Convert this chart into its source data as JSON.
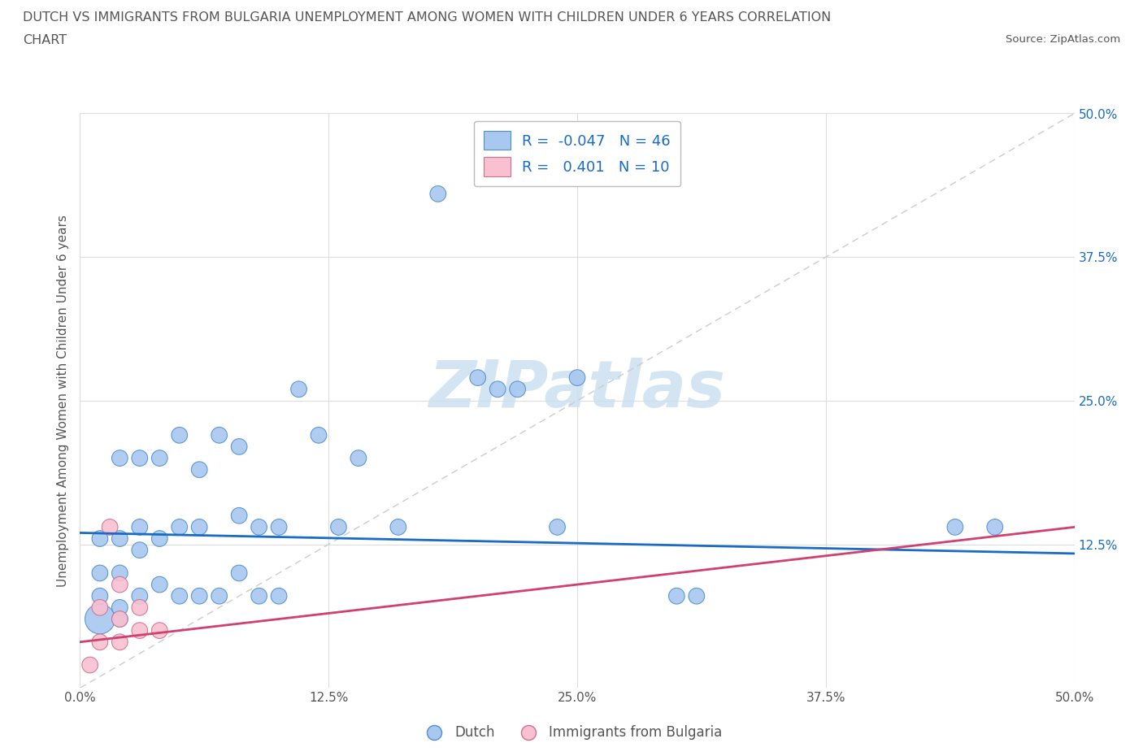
{
  "title_line1": "DUTCH VS IMMIGRANTS FROM BULGARIA UNEMPLOYMENT AMONG WOMEN WITH CHILDREN UNDER 6 YEARS CORRELATION",
  "title_line2": "CHART",
  "source": "Source: ZipAtlas.com",
  "ylabel": "Unemployment Among Women with Children Under 6 years",
  "xlim": [
    0.0,
    0.5
  ],
  "ylim": [
    0.0,
    0.5
  ],
  "xtick_vals": [
    0.0,
    0.125,
    0.25,
    0.375,
    0.5
  ],
  "xtick_labels": [
    "0.0%",
    "12.5%",
    "25.0%",
    "37.5%",
    "50.0%"
  ],
  "ytick_vals": [
    0.125,
    0.25,
    0.375,
    0.5
  ],
  "ytick_labels": [
    "12.5%",
    "25.0%",
    "37.5%",
    "50.0%"
  ],
  "dutch_R": -0.047,
  "dutch_N": 46,
  "bulgaria_R": 0.401,
  "bulgaria_N": 10,
  "dutch_color": "#a8c8f0",
  "dutch_edge_color": "#5090d0",
  "dutch_line_color": "#1a6bc4",
  "bulgaria_color": "#f8c0d0",
  "bulgaria_edge_color": "#d07090",
  "bulgaria_line_color": "#d04070",
  "watermark_color": "#cce0f0",
  "grid_color": "#dddddd",
  "bg_color": "#ffffff",
  "title_color": "#555555",
  "axis_label_color": "#555555",
  "tick_color_right": "#1a6bc4",
  "tick_color_bottom": "#555555",
  "dutch_x": [
    0.01,
    0.01,
    0.01,
    0.01,
    0.02,
    0.02,
    0.02,
    0.02,
    0.02,
    0.03,
    0.03,
    0.03,
    0.03,
    0.04,
    0.04,
    0.04,
    0.05,
    0.05,
    0.05,
    0.06,
    0.06,
    0.06,
    0.07,
    0.07,
    0.08,
    0.08,
    0.08,
    0.09,
    0.09,
    0.1,
    0.1,
    0.11,
    0.12,
    0.13,
    0.14,
    0.16,
    0.18,
    0.2,
    0.21,
    0.22,
    0.24,
    0.25,
    0.3,
    0.31,
    0.44,
    0.46
  ],
  "dutch_y": [
    0.06,
    0.08,
    0.1,
    0.13,
    0.06,
    0.07,
    0.1,
    0.13,
    0.2,
    0.08,
    0.12,
    0.14,
    0.2,
    0.09,
    0.13,
    0.2,
    0.08,
    0.14,
    0.22,
    0.08,
    0.14,
    0.19,
    0.08,
    0.22,
    0.1,
    0.15,
    0.21,
    0.08,
    0.14,
    0.08,
    0.14,
    0.26,
    0.22,
    0.14,
    0.2,
    0.14,
    0.43,
    0.27,
    0.26,
    0.26,
    0.14,
    0.27,
    0.08,
    0.08,
    0.14,
    0.14
  ],
  "dutch_sizes": [
    700,
    200,
    200,
    200,
    200,
    200,
    200,
    200,
    200,
    200,
    200,
    200,
    200,
    200,
    200,
    200,
    200,
    200,
    200,
    200,
    200,
    200,
    200,
    200,
    200,
    200,
    200,
    200,
    200,
    200,
    200,
    200,
    200,
    200,
    200,
    200,
    200,
    200,
    200,
    200,
    200,
    200,
    200,
    200,
    200,
    200
  ],
  "bulgaria_x": [
    0.005,
    0.01,
    0.01,
    0.015,
    0.02,
    0.02,
    0.02,
    0.03,
    0.03,
    0.04
  ],
  "bulgaria_y": [
    0.02,
    0.04,
    0.07,
    0.14,
    0.04,
    0.06,
    0.09,
    0.05,
    0.07,
    0.05
  ],
  "bulgaria_sizes": [
    200,
    200,
    200,
    200,
    200,
    200,
    200,
    200,
    200,
    200
  ],
  "dutch_trend_x": [
    0.0,
    0.5
  ],
  "dutch_trend_y": [
    0.135,
    0.117
  ],
  "bulgaria_trend_x": [
    0.0,
    0.5
  ],
  "bulgaria_trend_y": [
    0.04,
    0.14
  ]
}
